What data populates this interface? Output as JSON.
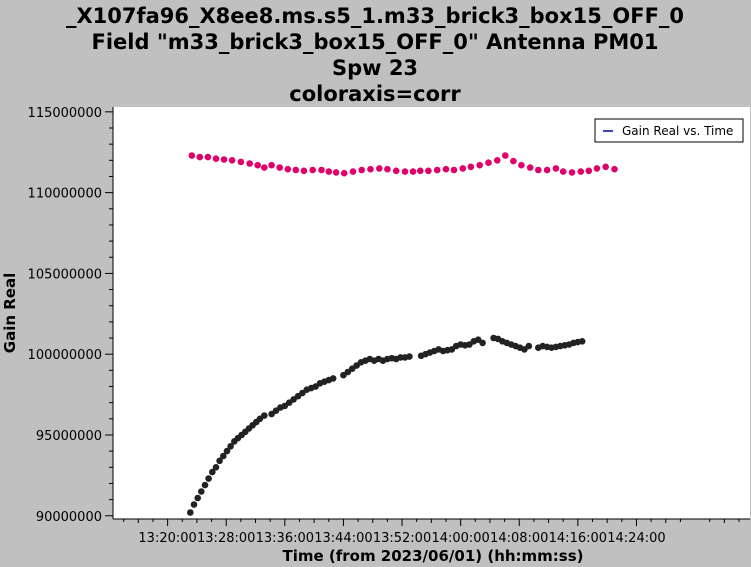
{
  "title_lines": [
    "_X107fa96_X8ee8.ms.s5_1.m33_brick3_box15_OFF_0",
    "Field \"m33_brick3_box15_OFF_0\" Antenna PM01",
    "Spw 23",
    "coloraxis=corr"
  ],
  "chart_data": {
    "type": "scatter",
    "title": "_X107fa96_X8ee8.ms.s5_1.m33_brick3_box15_OFF_0 Field \"m33_brick3_box15_OFF_0\" Antenna PM01 Spw 23 coloraxis=corr",
    "xlabel": "Time (from 2023/06/01) (hh:mm:ss)",
    "ylabel": "Gain Real",
    "x_unit": "minutes since 13:00:00",
    "xlim": [
      13.5,
      99.5
    ],
    "ylim": [
      89800000,
      115300000
    ],
    "x_ticks": [
      {
        "value": 20,
        "label": "13:20:00"
      },
      {
        "value": 28,
        "label": "13:28:00"
      },
      {
        "value": 36,
        "label": "13:36:00"
      },
      {
        "value": 44,
        "label": "13:44:00"
      },
      {
        "value": 52,
        "label": "13:52:00"
      },
      {
        "value": 60,
        "label": "14:00:00"
      },
      {
        "value": 68,
        "label": "14:08:00"
      },
      {
        "value": 76,
        "label": "14:16:00"
      },
      {
        "value": 84,
        "label": "14:24:00"
      }
    ],
    "y_ticks": [
      {
        "value": 90000000,
        "label": "90000000"
      },
      {
        "value": 95000000,
        "label": "95000000"
      },
      {
        "value": 100000000,
        "label": "100000000"
      },
      {
        "value": 105000000,
        "label": "105000000"
      },
      {
        "value": 110000000,
        "label": "110000000"
      },
      {
        "value": 115000000,
        "label": "115000000"
      }
    ],
    "legend": {
      "entries": [
        "Gain Real vs. Time"
      ],
      "placement": "top-right"
    },
    "grid": false,
    "series": [
      {
        "color": "#e0006a",
        "points": [
          [
            23.3,
            112300000
          ],
          [
            24.4,
            112200000
          ],
          [
            25.5,
            112200000
          ],
          [
            26.6,
            112100000
          ],
          [
            27.7,
            112050000
          ],
          [
            28.8,
            112000000
          ],
          [
            30.0,
            111900000
          ],
          [
            31.2,
            111800000
          ],
          [
            32.3,
            111700000
          ],
          [
            33.2,
            111550000
          ],
          [
            34.2,
            111700000
          ],
          [
            35.3,
            111550000
          ],
          [
            36.4,
            111450000
          ],
          [
            37.5,
            111400000
          ],
          [
            38.6,
            111350000
          ],
          [
            39.8,
            111400000
          ],
          [
            41.0,
            111400000
          ],
          [
            42.0,
            111300000
          ],
          [
            43.0,
            111250000
          ],
          [
            44.1,
            111200000
          ],
          [
            45.3,
            111300000
          ],
          [
            46.5,
            111400000
          ],
          [
            47.7,
            111450000
          ],
          [
            48.9,
            111500000
          ],
          [
            50.0,
            111450000
          ],
          [
            51.2,
            111350000
          ],
          [
            52.4,
            111300000
          ],
          [
            53.5,
            111300000
          ],
          [
            54.5,
            111350000
          ],
          [
            55.6,
            111350000
          ],
          [
            56.8,
            111400000
          ],
          [
            58.0,
            111450000
          ],
          [
            59.1,
            111400000
          ],
          [
            60.3,
            111500000
          ],
          [
            61.4,
            111600000
          ],
          [
            62.6,
            111700000
          ],
          [
            63.8,
            111850000
          ],
          [
            65.0,
            112000000
          ],
          [
            66.1,
            112300000
          ],
          [
            67.2,
            111950000
          ],
          [
            68.3,
            111700000
          ],
          [
            69.5,
            111550000
          ],
          [
            70.6,
            111400000
          ],
          [
            71.8,
            111400000
          ],
          [
            73.0,
            111500000
          ],
          [
            74.0,
            111300000
          ],
          [
            75.2,
            111250000
          ],
          [
            76.4,
            111300000
          ],
          [
            77.5,
            111350000
          ],
          [
            78.6,
            111500000
          ],
          [
            79.8,
            111600000
          ],
          [
            81.0,
            111450000
          ]
        ]
      },
      {
        "color": "#222222",
        "points": [
          [
            23.1,
            90200000
          ],
          [
            23.6,
            90700000
          ],
          [
            24.1,
            91100000
          ],
          [
            24.6,
            91500000
          ],
          [
            25.1,
            91900000
          ],
          [
            25.6,
            92300000
          ],
          [
            26.1,
            92700000
          ],
          [
            26.6,
            93000000
          ],
          [
            27.1,
            93400000
          ],
          [
            27.6,
            93700000
          ],
          [
            28.1,
            94000000
          ],
          [
            28.6,
            94300000
          ],
          [
            29.1,
            94600000
          ],
          [
            29.6,
            94800000
          ],
          [
            30.1,
            95000000
          ],
          [
            30.6,
            95200000
          ],
          [
            31.1,
            95400000
          ],
          [
            31.6,
            95600000
          ],
          [
            32.1,
            95800000
          ],
          [
            32.6,
            96000000
          ],
          [
            33.2,
            96200000
          ],
          [
            34.2,
            96300000
          ],
          [
            34.8,
            96500000
          ],
          [
            35.4,
            96700000
          ],
          [
            36.0,
            96800000
          ],
          [
            36.6,
            97000000
          ],
          [
            37.2,
            97200000
          ],
          [
            37.8,
            97400000
          ],
          [
            38.4,
            97600000
          ],
          [
            39.0,
            97800000
          ],
          [
            39.6,
            97900000
          ],
          [
            40.2,
            98000000
          ],
          [
            40.8,
            98200000
          ],
          [
            41.4,
            98300000
          ],
          [
            42.0,
            98400000
          ],
          [
            42.6,
            98500000
          ],
          [
            44.0,
            98700000
          ],
          [
            44.6,
            98900000
          ],
          [
            45.2,
            99100000
          ],
          [
            45.8,
            99300000
          ],
          [
            46.4,
            99500000
          ],
          [
            47.0,
            99600000
          ],
          [
            47.6,
            99700000
          ],
          [
            48.2,
            99600000
          ],
          [
            48.8,
            99700000
          ],
          [
            49.4,
            99600000
          ],
          [
            50.0,
            99700000
          ],
          [
            50.6,
            99750000
          ],
          [
            51.2,
            99700000
          ],
          [
            51.8,
            99800000
          ],
          [
            52.4,
            99800000
          ],
          [
            53.0,
            99850000
          ],
          [
            54.6,
            99900000
          ],
          [
            55.2,
            100000000
          ],
          [
            55.8,
            100100000
          ],
          [
            56.4,
            100200000
          ],
          [
            57.0,
            100300000
          ],
          [
            57.6,
            100200000
          ],
          [
            58.2,
            100250000
          ],
          [
            58.8,
            100300000
          ],
          [
            59.4,
            100500000
          ],
          [
            60.0,
            100600000
          ],
          [
            60.6,
            100550000
          ],
          [
            61.2,
            100600000
          ],
          [
            61.8,
            100800000
          ],
          [
            62.4,
            100900000
          ],
          [
            63.0,
            100700000
          ],
          [
            64.5,
            101000000
          ],
          [
            65.1,
            100950000
          ],
          [
            65.7,
            100800000
          ],
          [
            66.3,
            100700000
          ],
          [
            66.9,
            100600000
          ],
          [
            67.5,
            100500000
          ],
          [
            68.1,
            100400000
          ],
          [
            68.7,
            100300000
          ],
          [
            69.3,
            100500000
          ],
          [
            70.6,
            100400000
          ],
          [
            71.2,
            100500000
          ],
          [
            71.8,
            100450000
          ],
          [
            72.4,
            100400000
          ],
          [
            73.0,
            100450000
          ],
          [
            73.6,
            100500000
          ],
          [
            74.2,
            100550000
          ],
          [
            74.8,
            100600000
          ],
          [
            75.4,
            100700000
          ],
          [
            76.0,
            100750000
          ],
          [
            76.6,
            100800000
          ]
        ]
      }
    ]
  }
}
